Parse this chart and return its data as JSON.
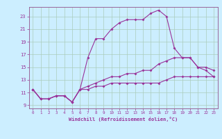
{
  "xlabel": "Windchill (Refroidissement éolien,°C)",
  "bg_color": "#cceeff",
  "grid_color": "#aaccbb",
  "line_color": "#993399",
  "spine_color": "#996699",
  "xlim": [
    -0.5,
    23.5
  ],
  "ylim": [
    8.5,
    24.5
  ],
  "xticks": [
    0,
    1,
    2,
    3,
    4,
    5,
    6,
    7,
    8,
    9,
    10,
    11,
    12,
    13,
    14,
    15,
    16,
    17,
    18,
    19,
    20,
    21,
    22,
    23
  ],
  "yticks": [
    9,
    11,
    13,
    15,
    17,
    19,
    21,
    23
  ],
  "line1_x": [
    0,
    1,
    2,
    3,
    4,
    5,
    6,
    7,
    8,
    9,
    10,
    11,
    12,
    13,
    14,
    15,
    16,
    17,
    18,
    19,
    20,
    21,
    22,
    23
  ],
  "line1_y": [
    11.5,
    10.0,
    10.0,
    10.5,
    10.5,
    9.5,
    11.5,
    16.5,
    19.5,
    19.5,
    21.0,
    22.0,
    22.5,
    22.5,
    22.5,
    23.5,
    24.0,
    23.0,
    18.0,
    16.5,
    16.5,
    15.0,
    15.0,
    14.5
  ],
  "line2_x": [
    0,
    1,
    2,
    3,
    4,
    5,
    6,
    7,
    8,
    9,
    10,
    11,
    12,
    13,
    14,
    15,
    16,
    17,
    18,
    19,
    20,
    21,
    22,
    23
  ],
  "line2_y": [
    11.5,
    10.0,
    10.0,
    10.5,
    10.5,
    9.5,
    11.5,
    12.0,
    12.5,
    13.0,
    13.5,
    13.5,
    14.0,
    14.0,
    14.5,
    14.5,
    15.5,
    16.0,
    16.5,
    16.5,
    16.5,
    15.0,
    14.5,
    13.5
  ],
  "line3_x": [
    0,
    1,
    2,
    3,
    4,
    5,
    6,
    7,
    8,
    9,
    10,
    11,
    12,
    13,
    14,
    15,
    16,
    17,
    18,
    19,
    20,
    21,
    22,
    23
  ],
  "line3_y": [
    11.5,
    10.0,
    10.0,
    10.5,
    10.5,
    9.5,
    11.5,
    11.5,
    12.0,
    12.0,
    12.5,
    12.5,
    12.5,
    12.5,
    12.5,
    12.5,
    12.5,
    13.0,
    13.5,
    13.5,
    13.5,
    13.5,
    13.5,
    13.5
  ]
}
